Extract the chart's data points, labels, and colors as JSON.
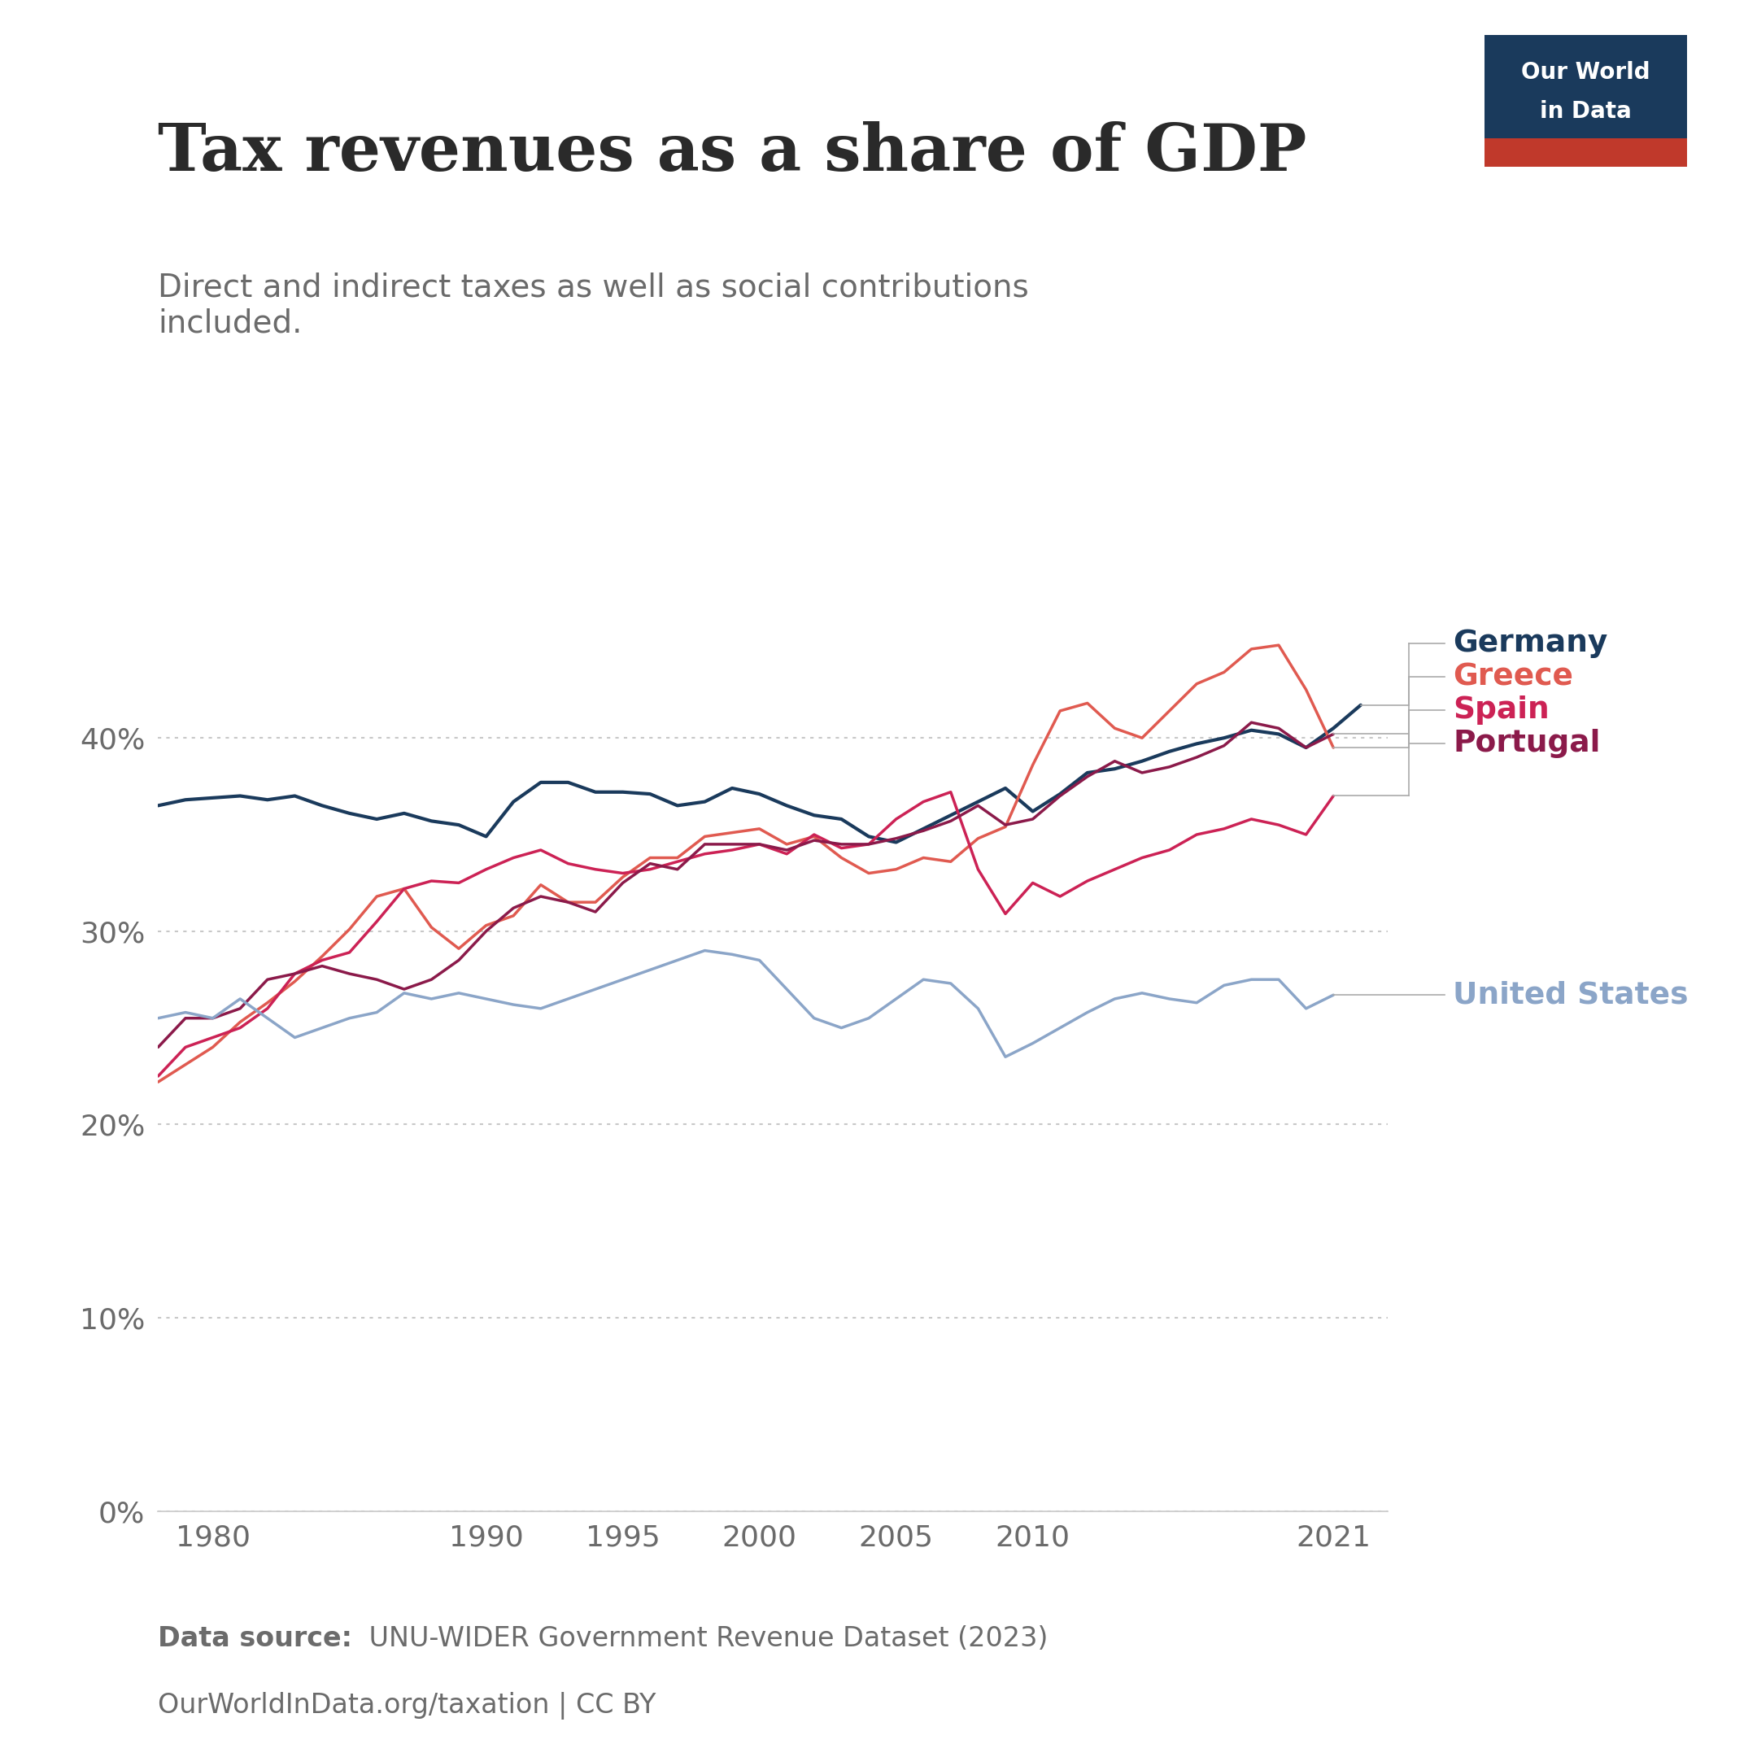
{
  "title": "Tax revenues as a share of GDP",
  "subtitle": "Direct and indirect taxes as well as social contributions\nincluded.",
  "source_bold": "Data source:",
  "source_text": " UNU-WIDER Government Revenue Dataset (2023)",
  "source_line2": "OurWorldInData.org/taxation | CC BY",
  "background_color": "#ffffff",
  "title_color": "#2a2a2a",
  "subtitle_color": "#6b6b6b",
  "source_color": "#6b6b6b",
  "grid_color": "#c8c8c8",
  "axis_color": "#c8c8c8",
  "tick_color": "#6b6b6b",
  "logo_bg": "#1a3a5c",
  "logo_red": "#c0392b",
  "logo_text": "#ffffff",
  "ylim": [
    0,
    50
  ],
  "yticks": [
    0,
    10,
    20,
    30,
    40
  ],
  "ytick_labels": [
    "0%",
    "10%",
    "20%",
    "30%",
    "40%"
  ],
  "xtick_labels": [
    "1980",
    "1990",
    "1995",
    "2000",
    "2005",
    "2010",
    "2021"
  ],
  "xtick_positions": [
    1980,
    1990,
    1995,
    2000,
    2005,
    2010,
    2021
  ],
  "series": {
    "Germany": {
      "color": "#1a3a5c",
      "linewidth": 3.0,
      "years": [
        1978,
        1979,
        1980,
        1981,
        1982,
        1983,
        1984,
        1985,
        1986,
        1987,
        1988,
        1989,
        1990,
        1991,
        1992,
        1993,
        1994,
        1995,
        1996,
        1997,
        1998,
        1999,
        2000,
        2001,
        2002,
        2003,
        2004,
        2005,
        2006,
        2007,
        2008,
        2009,
        2010,
        2011,
        2012,
        2013,
        2014,
        2015,
        2016,
        2017,
        2018,
        2019,
        2020,
        2021,
        2022
      ],
      "values": [
        36.5,
        36.8,
        36.9,
        37.0,
        36.8,
        37.0,
        36.5,
        36.1,
        35.8,
        36.1,
        35.7,
        35.5,
        34.9,
        36.7,
        37.7,
        37.7,
        37.2,
        37.2,
        37.1,
        36.5,
        36.7,
        37.4,
        37.1,
        36.5,
        36.0,
        35.8,
        34.9,
        34.6,
        35.3,
        36.0,
        36.7,
        37.4,
        36.2,
        37.1,
        38.2,
        38.4,
        38.8,
        39.3,
        39.7,
        40.0,
        40.4,
        40.2,
        39.5,
        40.5,
        41.7
      ]
    },
    "Greece": {
      "color": "#e05a50",
      "linewidth": 2.5,
      "years": [
        1978,
        1979,
        1980,
        1981,
        1982,
        1983,
        1984,
        1985,
        1986,
        1987,
        1988,
        1989,
        1990,
        1991,
        1992,
        1993,
        1994,
        1995,
        1996,
        1997,
        1998,
        1999,
        2000,
        2001,
        2002,
        2003,
        2004,
        2005,
        2006,
        2007,
        2008,
        2009,
        2010,
        2011,
        2012,
        2013,
        2014,
        2015,
        2016,
        2017,
        2018,
        2019,
        2020,
        2021
      ],
      "values": [
        22.2,
        23.1,
        24.0,
        25.3,
        26.3,
        27.4,
        28.7,
        30.1,
        31.8,
        32.2,
        30.2,
        29.1,
        30.3,
        30.8,
        32.4,
        31.5,
        31.5,
        32.8,
        33.8,
        33.8,
        34.9,
        35.1,
        35.3,
        34.5,
        34.9,
        33.8,
        33.0,
        33.2,
        33.8,
        33.6,
        34.8,
        35.4,
        38.6,
        41.4,
        41.8,
        40.5,
        40.0,
        41.4,
        42.8,
        43.4,
        44.6,
        44.8,
        42.5,
        39.5
      ]
    },
    "Spain": {
      "color": "#cc2255",
      "linewidth": 2.5,
      "years": [
        1978,
        1979,
        1980,
        1981,
        1982,
        1983,
        1984,
        1985,
        1986,
        1987,
        1988,
        1989,
        1990,
        1991,
        1992,
        1993,
        1994,
        1995,
        1996,
        1997,
        1998,
        1999,
        2000,
        2001,
        2002,
        2003,
        2004,
        2005,
        2006,
        2007,
        2008,
        2009,
        2010,
        2011,
        2012,
        2013,
        2014,
        2015,
        2016,
        2017,
        2018,
        2019,
        2020,
        2021
      ],
      "values": [
        22.5,
        24.0,
        24.5,
        25.0,
        26.0,
        27.8,
        28.5,
        28.9,
        30.5,
        32.2,
        32.6,
        32.5,
        33.2,
        33.8,
        34.2,
        33.5,
        33.2,
        33.0,
        33.2,
        33.6,
        34.0,
        34.2,
        34.5,
        34.0,
        35.0,
        34.3,
        34.5,
        35.8,
        36.7,
        37.2,
        33.2,
        30.9,
        32.5,
        31.8,
        32.6,
        33.2,
        33.8,
        34.2,
        35.0,
        35.3,
        35.8,
        35.5,
        35.0,
        37.0
      ]
    },
    "Portugal": {
      "color": "#8b1a4a",
      "linewidth": 2.5,
      "years": [
        1978,
        1979,
        1980,
        1981,
        1982,
        1983,
        1984,
        1985,
        1986,
        1987,
        1988,
        1989,
        1990,
        1991,
        1992,
        1993,
        1994,
        1995,
        1996,
        1997,
        1998,
        1999,
        2000,
        2001,
        2002,
        2003,
        2004,
        2005,
        2006,
        2007,
        2008,
        2009,
        2010,
        2011,
        2012,
        2013,
        2014,
        2015,
        2016,
        2017,
        2018,
        2019,
        2020,
        2021
      ],
      "values": [
        24.0,
        25.5,
        25.5,
        26.0,
        27.5,
        27.8,
        28.2,
        27.8,
        27.5,
        27.0,
        27.5,
        28.5,
        30.0,
        31.2,
        31.8,
        31.5,
        31.0,
        32.5,
        33.5,
        33.2,
        34.5,
        34.5,
        34.5,
        34.2,
        34.7,
        34.5,
        34.5,
        34.8,
        35.2,
        35.7,
        36.5,
        35.5,
        35.8,
        37.0,
        38.0,
        38.8,
        38.2,
        38.5,
        39.0,
        39.6,
        40.8,
        40.5,
        39.5,
        40.2
      ]
    },
    "United States": {
      "color": "#8ba5c8",
      "linewidth": 2.5,
      "years": [
        1978,
        1979,
        1980,
        1981,
        1982,
        1983,
        1984,
        1985,
        1986,
        1987,
        1988,
        1989,
        1990,
        1991,
        1992,
        1993,
        1994,
        1995,
        1996,
        1997,
        1998,
        1999,
        2000,
        2001,
        2002,
        2003,
        2004,
        2005,
        2006,
        2007,
        2008,
        2009,
        2010,
        2011,
        2012,
        2013,
        2014,
        2015,
        2016,
        2017,
        2018,
        2019,
        2020,
        2021
      ],
      "values": [
        25.5,
        25.8,
        25.5,
        26.5,
        25.5,
        24.5,
        25.0,
        25.5,
        25.8,
        26.8,
        26.5,
        26.8,
        26.5,
        26.2,
        26.0,
        26.5,
        27.0,
        27.5,
        28.0,
        28.5,
        29.0,
        28.8,
        28.5,
        27.0,
        25.5,
        25.0,
        25.5,
        26.5,
        27.5,
        27.3,
        26.0,
        23.5,
        24.2,
        25.0,
        25.8,
        26.5,
        26.8,
        26.5,
        26.3,
        27.2,
        27.5,
        27.5,
        26.0,
        26.7
      ]
    }
  },
  "legend_order": [
    "Germany",
    "Greece",
    "Spain",
    "Portugal",
    "United States"
  ],
  "legend_colors": {
    "Germany": "#1a3a5c",
    "Greece": "#e05a50",
    "Spain": "#cc2255",
    "Portugal": "#8b1a4a",
    "United States": "#8ba5c8"
  }
}
